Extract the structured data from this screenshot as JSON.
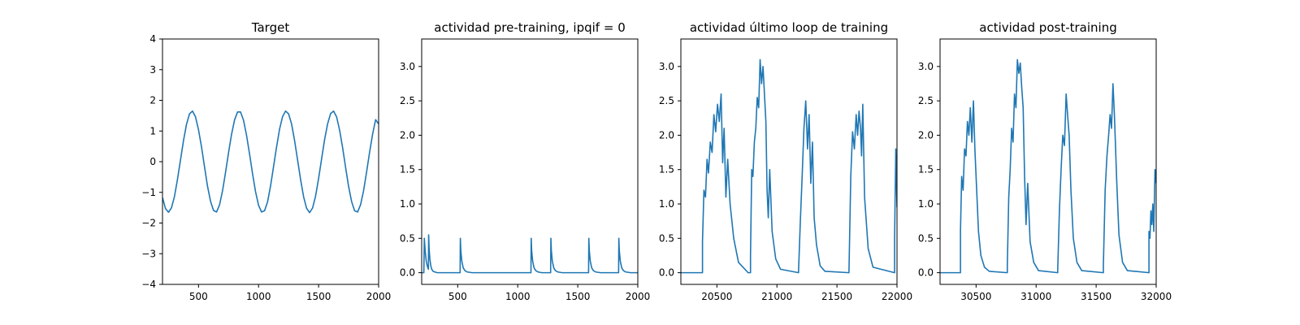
{
  "chart_data": [
    {
      "type": "line",
      "title": "Target",
      "xlim": [
        200,
        2000
      ],
      "ylim": [
        -4,
        4
      ],
      "xticks": [
        500,
        1000,
        1500,
        2000
      ],
      "yticks": [
        -4,
        -3,
        -2,
        -1,
        0,
        1,
        2,
        3,
        4
      ],
      "series": [
        {
          "color": "#1f77b4",
          "x": [
            200,
            225,
            250,
            275,
            300,
            325,
            350,
            375,
            400,
            425,
            450,
            475,
            500,
            525,
            550,
            575,
            600,
            625,
            650,
            675,
            700,
            725,
            750,
            775,
            800,
            825,
            850,
            875,
            900,
            925,
            950,
            975,
            1000,
            1025,
            1050,
            1075,
            1100,
            1125,
            1150,
            1175,
            1200,
            1225,
            1250,
            1275,
            1300,
            1325,
            1350,
            1375,
            1400,
            1425,
            1450,
            1475,
            1500,
            1525,
            1550,
            1575,
            1600,
            1625,
            1650,
            1675,
            1700,
            1725,
            1750,
            1775,
            1800,
            1825,
            1850,
            1875,
            1900,
            1925,
            1950,
            1975,
            2000
          ],
          "y": [
            -1.17,
            -1.53,
            -1.65,
            -1.5,
            -1.13,
            -0.57,
            0.06,
            0.69,
            1.22,
            1.56,
            1.65,
            1.46,
            1.04,
            0.48,
            -0.17,
            -0.8,
            -1.29,
            -1.59,
            -1.64,
            -1.41,
            -0.95,
            -0.35,
            0.29,
            0.89,
            1.36,
            1.62,
            1.62,
            1.35,
            0.86,
            0.25,
            -0.39,
            -0.98,
            -1.42,
            -1.64,
            -1.6,
            -1.31,
            -0.79,
            -0.16,
            0.48,
            1.06,
            1.47,
            1.65,
            1.56,
            1.23,
            0.69,
            0.06,
            -0.58,
            -1.14,
            -1.52,
            -1.66,
            -1.51,
            -1.12,
            -0.55,
            0.09,
            0.72,
            1.23,
            1.57,
            1.65,
            1.46,
            1.03,
            0.46,
            -0.19,
            -0.81,
            -1.3,
            -1.6,
            -1.64,
            -1.4,
            -0.94,
            -0.33,
            0.31,
            0.9,
            1.37,
            1.23
          ]
        }
      ]
    },
    {
      "type": "line",
      "title": "actividad pre-training, ipqif = 0",
      "xlim": [
        200,
        2000
      ],
      "ylim": [
        -0.17,
        3.4
      ],
      "xticks": [
        500,
        1000,
        1500,
        2000
      ],
      "yticks": [
        0.0,
        0.5,
        1.0,
        1.5,
        2.0,
        2.5,
        3.0
      ],
      "yticklabels": [
        "0.0",
        "0.5",
        "1.0",
        "1.5",
        "2.0",
        "2.5",
        "3.0"
      ],
      "series": [
        {
          "color": "#1f77b4",
          "x": [
            200,
            218,
            222,
            230,
            238,
            246,
            252,
            256,
            258,
            262,
            268,
            276,
            284,
            295,
            310,
            330,
            520,
            522,
            526,
            534,
            546,
            560,
            580,
            620,
            1100,
            1110,
            1112,
            1116,
            1124,
            1136,
            1150,
            1170,
            1200,
            1268,
            1274,
            1276,
            1280,
            1288,
            1300,
            1314,
            1335,
            1370,
            1580,
            1590,
            1592,
            1596,
            1604,
            1616,
            1630,
            1650,
            1690,
            1830,
            1840,
            1842,
            1846,
            1854,
            1866,
            1880,
            1900,
            1940,
            2000
          ],
          "y": [
            0,
            0,
            0.5,
            0.3,
            0.17,
            0.1,
            0.07,
            0.05,
            0.55,
            0.35,
            0.2,
            0.1,
            0.05,
            0.02,
            0.01,
            0,
            0,
            0.5,
            0.32,
            0.17,
            0.07,
            0.03,
            0.01,
            0,
            0,
            0,
            0.5,
            0.32,
            0.17,
            0.07,
            0.03,
            0.01,
            0,
            0,
            0,
            0.5,
            0.32,
            0.17,
            0.07,
            0.03,
            0.01,
            0,
            0,
            0,
            0.5,
            0.32,
            0.17,
            0.07,
            0.03,
            0.01,
            0,
            0,
            0,
            0.5,
            0.32,
            0.17,
            0.07,
            0.03,
            0.01,
            0,
            0
          ]
        }
      ]
    },
    {
      "type": "line",
      "title": "actividad último loop de training",
      "xlim": [
        20200,
        22000
      ],
      "ylim": [
        -0.17,
        3.4
      ],
      "xticks": [
        20500,
        21000,
        21500,
        22000
      ],
      "yticks": [
        0.0,
        0.5,
        1.0,
        1.5,
        2.0,
        2.5,
        3.0
      ],
      "yticklabels": [
        "0.0",
        "0.5",
        "1.0",
        "1.5",
        "2.0",
        "2.5",
        "3.0"
      ],
      "series": [
        {
          "color": "#1f77b4",
          "x": [
            20200,
            20380,
            20380,
            20392,
            20405,
            20418,
            20430,
            20445,
            20460,
            20475,
            20490,
            20505,
            20520,
            20535,
            20548,
            20560,
            20575,
            20590,
            20610,
            20640,
            20680,
            20760,
            20780,
            20780,
            20790,
            20800,
            20812,
            20824,
            20836,
            20848,
            20860,
            20872,
            20884,
            20896,
            20908,
            20918,
            20928,
            20940,
            20960,
            20990,
            21030,
            21180,
            21180,
            21195,
            21210,
            21225,
            21240,
            21255,
            21268,
            21282,
            21296,
            21310,
            21330,
            21360,
            21400,
            21600,
            21600,
            21615,
            21630,
            21645,
            21660,
            21672,
            21684,
            21696,
            21705,
            21715,
            21730,
            21760,
            21800,
            21980,
            21980,
            21990,
            22000
          ],
          "y": [
            0,
            0,
            0.45,
            1.2,
            1.1,
            1.65,
            1.45,
            1.9,
            1.75,
            2.3,
            2.05,
            2.45,
            2.2,
            2.6,
            1.6,
            2.1,
            1.1,
            1.65,
            1.0,
            0.5,
            0.15,
            0,
            0,
            0.25,
            1.5,
            1.4,
            1.9,
            2.1,
            2.55,
            2.4,
            3.1,
            2.75,
            3.0,
            2.6,
            2.2,
            1.2,
            0.8,
            1.5,
            0.6,
            0.2,
            0.05,
            0,
            0.02,
            0.75,
            1.4,
            2.1,
            2.5,
            1.8,
            2.3,
            1.3,
            1.9,
            0.8,
            0.4,
            0.1,
            0.02,
            0,
            0.02,
            1.4,
            2.05,
            1.8,
            2.3,
            2.0,
            2.35,
            2.1,
            1.7,
            2.45,
            1.1,
            0.35,
            0.08,
            0,
            0.5,
            1.8,
            0.95
          ]
        }
      ]
    },
    {
      "type": "line",
      "title": "actividad post-training",
      "xlim": [
        30200,
        32000
      ],
      "ylim": [
        -0.17,
        3.4
      ],
      "xticks": [
        30500,
        31000,
        31500,
        32000
      ],
      "yticks": [
        0.0,
        0.5,
        1.0,
        1.5,
        2.0,
        2.5,
        3.0
      ],
      "yticklabels": [
        "0.0",
        "0.5",
        "1.0",
        "1.5",
        "2.0",
        "2.5",
        "3.0"
      ],
      "series": [
        {
          "color": "#1f77b4",
          "x": [
            30200,
            30370,
            30370,
            30380,
            30392,
            30404,
            30416,
            30428,
            30440,
            30452,
            30465,
            30478,
            30490,
            30505,
            30520,
            30540,
            30570,
            30610,
            30760,
            30760,
            30772,
            30784,
            30796,
            30808,
            30820,
            30832,
            30844,
            30856,
            30868,
            30880,
            30892,
            30904,
            30916,
            30930,
            30950,
            30980,
            31020,
            31180,
            31180,
            31194,
            31208,
            31222,
            31236,
            31250,
            31262,
            31275,
            31290,
            31310,
            31340,
            31380,
            31560,
            31560,
            31575,
            31590,
            31604,
            31616,
            31628,
            31640,
            31652,
            31660,
            31672,
            31690,
            31720,
            31760,
            31940,
            31940,
            31948,
            31956,
            31964,
            31972,
            31980,
            31990,
            32000
          ],
          "y": [
            0,
            0,
            0.6,
            1.4,
            1.2,
            1.8,
            1.7,
            2.2,
            2.0,
            2.4,
            1.9,
            2.5,
            1.8,
            1.2,
            0.6,
            0.25,
            0.08,
            0.02,
            0,
            0.1,
            1.1,
            1.5,
            2.1,
            1.9,
            2.6,
            2.4,
            3.1,
            2.9,
            3.05,
            2.7,
            2.4,
            1.4,
            0.7,
            1.3,
            0.45,
            0.15,
            0.03,
            0,
            0.05,
            0.9,
            1.5,
            2.0,
            1.85,
            2.6,
            2.3,
            2.0,
            1.2,
            0.5,
            0.15,
            0.03,
            0,
            0.1,
            1.2,
            1.7,
            2.0,
            2.3,
            2.1,
            2.75,
            2.3,
            1.9,
            1.3,
            0.55,
            0.15,
            0.03,
            0,
            0.6,
            0.5,
            0.9,
            0.7,
            1.0,
            0.6,
            1.5,
            1.3
          ]
        }
      ]
    }
  ]
}
